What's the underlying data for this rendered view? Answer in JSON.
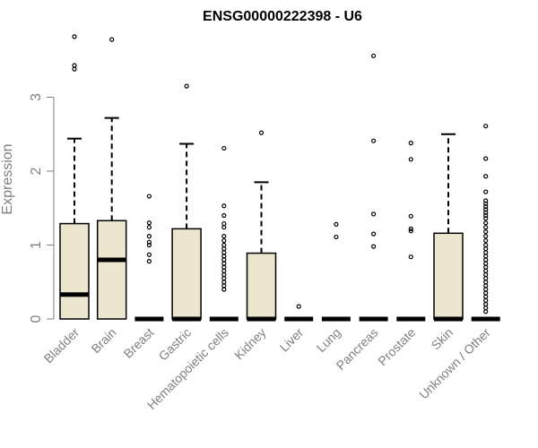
{
  "chart_data": {
    "type": "boxplot",
    "title": "ENSG00000222398 - U6",
    "xlabel": "",
    "ylabel": "Expression",
    "ylim": [
      0,
      3.9
    ],
    "yticks": [
      0,
      1,
      2,
      3
    ],
    "box_fill": "#ede6ce",
    "categories": [
      "Bladder",
      "Brain",
      "Breast",
      "Gastric",
      "Hematopoietic cells",
      "Kidney",
      "Liver",
      "Lung",
      "Pancreas",
      "Prostate",
      "Skin",
      "Unknown / Other"
    ],
    "boxes": [
      {
        "q1": 0,
        "median": 0.33,
        "q3": 1.29,
        "wmin": 0,
        "wmax": 2.44,
        "outliers": [
          3.82,
          3.43,
          3.38
        ]
      },
      {
        "q1": 0,
        "median": 0.8,
        "q3": 1.33,
        "wmin": 0,
        "wmax": 2.72,
        "outliers": [
          3.78
        ]
      },
      {
        "q1": 0,
        "median": 0,
        "q3": 0,
        "wmin": 0,
        "wmax": 0,
        "outliers": [
          1.66,
          1.3,
          1.24,
          1.12,
          1.04,
          1.0,
          0.87,
          0.78
        ]
      },
      {
        "q1": 0,
        "median": 0,
        "q3": 1.22,
        "wmin": 0,
        "wmax": 2.37,
        "outliers": [
          3.15
        ]
      },
      {
        "q1": 0,
        "median": 0,
        "q3": 0,
        "wmin": 0,
        "wmax": 0,
        "outliers": [
          2.31,
          1.53,
          1.4,
          1.29,
          1.24,
          1.12,
          1.06,
          1.0,
          0.95,
          0.9,
          0.85,
          0.8,
          0.75,
          0.7,
          0.65,
          0.6,
          0.55,
          0.5,
          0.45,
          0.4
        ]
      },
      {
        "q1": 0,
        "median": 0,
        "q3": 0.89,
        "wmin": 0,
        "wmax": 1.85,
        "outliers": [
          2.52
        ]
      },
      {
        "q1": 0,
        "median": 0,
        "q3": 0,
        "wmin": 0,
        "wmax": 0,
        "outliers": [
          0.17
        ]
      },
      {
        "q1": 0,
        "median": 0,
        "q3": 0,
        "wmin": 0,
        "wmax": 0,
        "outliers": [
          1.28,
          1.11
        ]
      },
      {
        "q1": 0,
        "median": 0,
        "q3": 0,
        "wmin": 0,
        "wmax": 0,
        "outliers": [
          3.56,
          2.41,
          1.42,
          1.15,
          0.98
        ]
      },
      {
        "q1": 0,
        "median": 0,
        "q3": 0,
        "wmin": 0,
        "wmax": 0,
        "outliers": [
          2.38,
          2.16,
          1.39,
          1.22,
          1.19,
          0.84
        ]
      },
      {
        "q1": 0,
        "median": 0,
        "q3": 1.16,
        "wmin": 0,
        "wmax": 2.5,
        "outliers": []
      },
      {
        "q1": 0,
        "median": 0,
        "q3": 0,
        "wmin": 0,
        "wmax": 0,
        "outliers": [
          2.61,
          2.17,
          1.93,
          1.72,
          1.6,
          1.56,
          1.52,
          1.48,
          1.44,
          1.4,
          1.36,
          1.3,
          1.24,
          1.18,
          1.12,
          1.06,
          1.0,
          0.95,
          0.9,
          0.85,
          0.8,
          0.75,
          0.7,
          0.65,
          0.6,
          0.55,
          0.5,
          0.45,
          0.4,
          0.35,
          0.3,
          0.25,
          0.2,
          0.15,
          0.1
        ]
      }
    ]
  }
}
